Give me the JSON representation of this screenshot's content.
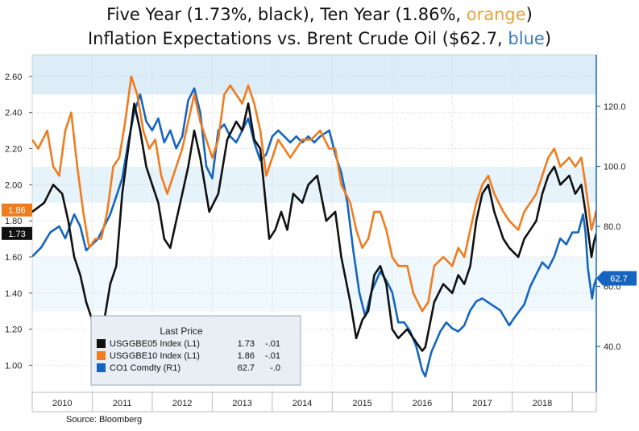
{
  "title": {
    "line1_prefix": "Five Year (1.73%, black), Ten Year (1.86%, ",
    "line1_colored": "orange",
    "line1_suffix": ")",
    "line2_prefix": "Inflation Expectations  vs. Brent Crude Oil ($62.7, ",
    "line2_colored": "blue",
    "line2_suffix": ")"
  },
  "source": "Source: Bloomberg",
  "chart_data": {
    "type": "line",
    "x_range": [
      2009.5,
      2018.9
    ],
    "x_ticks": [
      "2010",
      "2011",
      "2012",
      "2013",
      "2014",
      "2015",
      "2016",
      "2017",
      "2018"
    ],
    "y_left": {
      "range": [
        0.85,
        2.72
      ],
      "ticks": [
        "1.00",
        "1.20",
        "1.40",
        "1.60",
        "1.80",
        "2.00",
        "2.20",
        "2.40",
        "2.60"
      ]
    },
    "y_right": {
      "range": [
        24.7,
        137.2
      ],
      "ticks": [
        "40.0",
        "60.0",
        "80.0",
        "100.0",
        "120.0"
      ]
    },
    "legend": {
      "title": "Last Price",
      "position": "bottom-left",
      "entries": [
        {
          "name": "USGGBE05 Index  (L1)",
          "last": "1.73",
          "change": "-.01",
          "color": "#111111"
        },
        {
          "name": "USGGBE10 Index  (L1)",
          "last": "1.86",
          "change": "-.01",
          "color": "#f07c1e"
        },
        {
          "name": "CO1 Comdty  (R1)",
          "last": "62.7",
          "change": "-.0",
          "color": "#1565c0"
        }
      ]
    },
    "end_labels": {
      "ten_year": "1.86",
      "five_year": "1.73",
      "brent": "62.7"
    },
    "series": [
      {
        "name": "USGGBE05 Index",
        "axis": "left",
        "color": "#111111",
        "points": [
          [
            2009.5,
            1.85
          ],
          [
            2009.7,
            1.9
          ],
          [
            2009.85,
            2.0
          ],
          [
            2010.0,
            1.95
          ],
          [
            2010.1,
            1.8
          ],
          [
            2010.2,
            1.6
          ],
          [
            2010.3,
            1.5
          ],
          [
            2010.4,
            1.35
          ],
          [
            2010.5,
            1.25
          ],
          [
            2010.6,
            1.2
          ],
          [
            2010.7,
            1.25
          ],
          [
            2010.8,
            1.45
          ],
          [
            2010.9,
            1.55
          ],
          [
            2011.0,
            1.95
          ],
          [
            2011.1,
            2.2
          ],
          [
            2011.2,
            2.45
          ],
          [
            2011.3,
            2.3
          ],
          [
            2011.4,
            2.1
          ],
          [
            2011.5,
            2.0
          ],
          [
            2011.6,
            1.9
          ],
          [
            2011.7,
            1.7
          ],
          [
            2011.8,
            1.65
          ],
          [
            2011.9,
            1.8
          ],
          [
            2012.0,
            1.95
          ],
          [
            2012.1,
            2.1
          ],
          [
            2012.2,
            2.3
          ],
          [
            2012.3,
            2.15
          ],
          [
            2012.45,
            1.85
          ],
          [
            2012.6,
            1.95
          ],
          [
            2012.75,
            2.25
          ],
          [
            2012.9,
            2.35
          ],
          [
            2013.0,
            2.3
          ],
          [
            2013.1,
            2.45
          ],
          [
            2013.2,
            2.25
          ],
          [
            2013.3,
            2.2
          ],
          [
            2013.45,
            1.7
          ],
          [
            2013.55,
            1.75
          ],
          [
            2013.65,
            1.85
          ],
          [
            2013.75,
            1.75
          ],
          [
            2013.85,
            1.95
          ],
          [
            2014.0,
            1.9
          ],
          [
            2014.1,
            2.0
          ],
          [
            2014.25,
            2.05
          ],
          [
            2014.4,
            1.8
          ],
          [
            2014.55,
            1.85
          ],
          [
            2014.65,
            1.6
          ],
          [
            2014.8,
            1.35
          ],
          [
            2014.9,
            1.15
          ],
          [
            2015.0,
            1.25
          ],
          [
            2015.1,
            1.3
          ],
          [
            2015.2,
            1.5
          ],
          [
            2015.3,
            1.55
          ],
          [
            2015.4,
            1.45
          ],
          [
            2015.5,
            1.2
          ],
          [
            2015.6,
            1.15
          ],
          [
            2015.75,
            1.2
          ],
          [
            2015.85,
            1.15
          ],
          [
            2016.0,
            1.08
          ],
          [
            2016.05,
            1.1
          ],
          [
            2016.2,
            1.35
          ],
          [
            2016.35,
            1.45
          ],
          [
            2016.5,
            1.4
          ],
          [
            2016.6,
            1.5
          ],
          [
            2016.7,
            1.45
          ],
          [
            2016.8,
            1.55
          ],
          [
            2016.9,
            1.8
          ],
          [
            2017.0,
            1.95
          ],
          [
            2017.1,
            2.0
          ],
          [
            2017.2,
            1.85
          ],
          [
            2017.35,
            1.7
          ],
          [
            2017.45,
            1.65
          ],
          [
            2017.6,
            1.6
          ],
          [
            2017.7,
            1.7
          ],
          [
            2017.8,
            1.75
          ],
          [
            2017.9,
            1.8
          ],
          [
            2018.0,
            1.95
          ],
          [
            2018.1,
            2.05
          ],
          [
            2018.2,
            2.1
          ],
          [
            2018.3,
            2.0
          ],
          [
            2018.45,
            2.05
          ],
          [
            2018.55,
            1.95
          ],
          [
            2018.65,
            2.0
          ],
          [
            2018.72,
            1.85
          ],
          [
            2018.78,
            1.7
          ],
          [
            2018.82,
            1.6
          ],
          [
            2018.86,
            1.68
          ],
          [
            2018.9,
            1.73
          ]
        ]
      },
      {
        "name": "USGGBE10 Index",
        "axis": "left",
        "color": "#f07c1e",
        "points": [
          [
            2009.5,
            2.25
          ],
          [
            2009.6,
            2.2
          ],
          [
            2009.75,
            2.3
          ],
          [
            2009.85,
            2.1
          ],
          [
            2009.95,
            2.05
          ],
          [
            2010.05,
            2.3
          ],
          [
            2010.15,
            2.4
          ],
          [
            2010.25,
            2.1
          ],
          [
            2010.35,
            1.85
          ],
          [
            2010.45,
            1.65
          ],
          [
            2010.55,
            1.7
          ],
          [
            2010.65,
            1.7
          ],
          [
            2010.75,
            1.85
          ],
          [
            2010.85,
            2.1
          ],
          [
            2010.95,
            2.15
          ],
          [
            2011.05,
            2.35
          ],
          [
            2011.15,
            2.6
          ],
          [
            2011.25,
            2.5
          ],
          [
            2011.35,
            2.3
          ],
          [
            2011.45,
            2.2
          ],
          [
            2011.55,
            2.25
          ],
          [
            2011.65,
            2.05
          ],
          [
            2011.75,
            1.95
          ],
          [
            2011.85,
            2.05
          ],
          [
            2012.0,
            2.2
          ],
          [
            2012.1,
            2.35
          ],
          [
            2012.2,
            2.5
          ],
          [
            2012.3,
            2.35
          ],
          [
            2012.4,
            2.25
          ],
          [
            2012.5,
            2.15
          ],
          [
            2012.6,
            2.25
          ],
          [
            2012.7,
            2.5
          ],
          [
            2012.8,
            2.55
          ],
          [
            2012.9,
            2.5
          ],
          [
            2013.0,
            2.45
          ],
          [
            2013.1,
            2.55
          ],
          [
            2013.2,
            2.45
          ],
          [
            2013.3,
            2.3
          ],
          [
            2013.4,
            2.05
          ],
          [
            2013.5,
            2.15
          ],
          [
            2013.6,
            2.25
          ],
          [
            2013.7,
            2.2
          ],
          [
            2013.8,
            2.15
          ],
          [
            2013.9,
            2.2
          ],
          [
            2014.0,
            2.25
          ],
          [
            2014.15,
            2.25
          ],
          [
            2014.3,
            2.3
          ],
          [
            2014.45,
            2.2
          ],
          [
            2014.55,
            2.2
          ],
          [
            2014.65,
            2.0
          ],
          [
            2014.8,
            1.9
          ],
          [
            2014.9,
            1.75
          ],
          [
            2015.0,
            1.65
          ],
          [
            2015.1,
            1.7
          ],
          [
            2015.2,
            1.85
          ],
          [
            2015.3,
            1.85
          ],
          [
            2015.4,
            1.75
          ],
          [
            2015.5,
            1.6
          ],
          [
            2015.6,
            1.55
          ],
          [
            2015.75,
            1.55
          ],
          [
            2015.85,
            1.4
          ],
          [
            2016.0,
            1.3
          ],
          [
            2016.1,
            1.35
          ],
          [
            2016.2,
            1.55
          ],
          [
            2016.35,
            1.6
          ],
          [
            2016.5,
            1.55
          ],
          [
            2016.6,
            1.65
          ],
          [
            2016.7,
            1.6
          ],
          [
            2016.8,
            1.75
          ],
          [
            2016.9,
            1.9
          ],
          [
            2017.0,
            2.0
          ],
          [
            2017.1,
            2.05
          ],
          [
            2017.2,
            1.95
          ],
          [
            2017.35,
            1.85
          ],
          [
            2017.45,
            1.8
          ],
          [
            2017.6,
            1.75
          ],
          [
            2017.7,
            1.85
          ],
          [
            2017.8,
            1.9
          ],
          [
            2017.9,
            1.95
          ],
          [
            2018.0,
            2.05
          ],
          [
            2018.1,
            2.15
          ],
          [
            2018.2,
            2.2
          ],
          [
            2018.3,
            2.1
          ],
          [
            2018.45,
            2.15
          ],
          [
            2018.55,
            2.1
          ],
          [
            2018.65,
            2.15
          ],
          [
            2018.72,
            2.0
          ],
          [
            2018.78,
            1.85
          ],
          [
            2018.82,
            1.75
          ],
          [
            2018.86,
            1.8
          ],
          [
            2018.9,
            1.86
          ]
        ]
      },
      {
        "name": "CO1 Comdty",
        "axis": "right",
        "color": "#1565c0",
        "points": [
          [
            2009.5,
            70
          ],
          [
            2009.65,
            73
          ],
          [
            2009.8,
            78
          ],
          [
            2009.95,
            80
          ],
          [
            2010.05,
            76
          ],
          [
            2010.2,
            84
          ],
          [
            2010.3,
            80
          ],
          [
            2010.4,
            72
          ],
          [
            2010.5,
            74
          ],
          [
            2010.6,
            76
          ],
          [
            2010.7,
            80
          ],
          [
            2010.8,
            84
          ],
          [
            2010.9,
            90
          ],
          [
            2011.0,
            96
          ],
          [
            2011.1,
            108
          ],
          [
            2011.2,
            118
          ],
          [
            2011.3,
            124
          ],
          [
            2011.4,
            115
          ],
          [
            2011.5,
            112
          ],
          [
            2011.6,
            116
          ],
          [
            2011.7,
            108
          ],
          [
            2011.8,
            112
          ],
          [
            2011.9,
            106
          ],
          [
            2012.0,
            110
          ],
          [
            2012.1,
            122
          ],
          [
            2012.2,
            126
          ],
          [
            2012.3,
            118
          ],
          [
            2012.4,
            100
          ],
          [
            2012.5,
            96
          ],
          [
            2012.6,
            112
          ],
          [
            2012.7,
            114
          ],
          [
            2012.8,
            110
          ],
          [
            2012.9,
            108
          ],
          [
            2013.0,
            112
          ],
          [
            2013.1,
            116
          ],
          [
            2013.2,
            108
          ],
          [
            2013.3,
            102
          ],
          [
            2013.4,
            104
          ],
          [
            2013.5,
            110
          ],
          [
            2013.6,
            112
          ],
          [
            2013.7,
            110
          ],
          [
            2013.8,
            108
          ],
          [
            2013.9,
            110
          ],
          [
            2014.0,
            108
          ],
          [
            2014.1,
            110
          ],
          [
            2014.2,
            108
          ],
          [
            2014.3,
            110
          ],
          [
            2014.45,
            112
          ],
          [
            2014.55,
            104
          ],
          [
            2014.65,
            98
          ],
          [
            2014.75,
            88
          ],
          [
            2014.85,
            72
          ],
          [
            2014.95,
            58
          ],
          [
            2015.05,
            50
          ],
          [
            2015.15,
            58
          ],
          [
            2015.3,
            65
          ],
          [
            2015.4,
            62
          ],
          [
            2015.5,
            58
          ],
          [
            2015.6,
            48
          ],
          [
            2015.7,
            48
          ],
          [
            2015.8,
            45
          ],
          [
            2015.9,
            40
          ],
          [
            2016.0,
            32
          ],
          [
            2016.05,
            30
          ],
          [
            2016.15,
            38
          ],
          [
            2016.3,
            45
          ],
          [
            2016.4,
            48
          ],
          [
            2016.5,
            46
          ],
          [
            2016.6,
            45
          ],
          [
            2016.7,
            47
          ],
          [
            2016.8,
            52
          ],
          [
            2016.9,
            55
          ],
          [
            2017.0,
            56
          ],
          [
            2017.15,
            54
          ],
          [
            2017.3,
            52
          ],
          [
            2017.45,
            47
          ],
          [
            2017.55,
            50
          ],
          [
            2017.7,
            54
          ],
          [
            2017.8,
            60
          ],
          [
            2017.9,
            64
          ],
          [
            2018.0,
            68
          ],
          [
            2018.1,
            66
          ],
          [
            2018.2,
            70
          ],
          [
            2018.3,
            76
          ],
          [
            2018.4,
            74
          ],
          [
            2018.5,
            78
          ],
          [
            2018.6,
            78
          ],
          [
            2018.68,
            84
          ],
          [
            2018.72,
            78
          ],
          [
            2018.76,
            66
          ],
          [
            2018.8,
            60
          ],
          [
            2018.83,
            56
          ],
          [
            2018.86,
            60
          ],
          [
            2018.9,
            62.7
          ]
        ]
      }
    ]
  }
}
